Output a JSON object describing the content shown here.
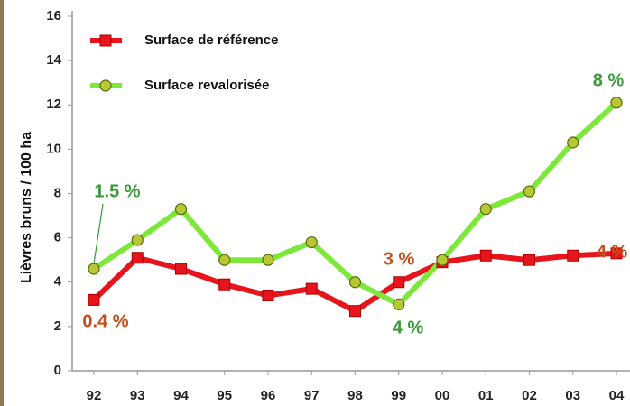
{
  "chart_data": {
    "type": "line",
    "y_label": "Lièvres bruns / 100 ha",
    "categories": [
      "92",
      "93",
      "94",
      "95",
      "96",
      "97",
      "98",
      "99",
      "00",
      "01",
      "02",
      "03",
      "04"
    ],
    "series": [
      {
        "name": "Surface de référence",
        "color": "#e8141c",
        "marker": "square",
        "values": [
          3.2,
          5.1,
          4.6,
          3.9,
          3.4,
          3.7,
          2.7,
          4.0,
          4.9,
          5.2,
          5.0,
          5.2,
          5.3
        ]
      },
      {
        "name": "Surface revalorisée",
        "color": "#7ee83a",
        "marker": "circle",
        "values": [
          4.6,
          5.9,
          7.3,
          5.0,
          5.0,
          5.8,
          4.0,
          3.0,
          5.0,
          7.3,
          8.1,
          10.3,
          12.1
        ]
      }
    ],
    "ylim": [
      0,
      16
    ],
    "yticks": [
      0,
      2,
      4,
      6,
      8,
      10,
      12,
      14,
      16
    ],
    "annotations": [
      {
        "text": "1.5 %",
        "color": "#3a9a3a"
      },
      {
        "text": "0.4 %",
        "color": "#c0521e"
      },
      {
        "text": "3 %",
        "color": "#c0521e"
      },
      {
        "text": "4 %",
        "color": "#3a9a3a"
      },
      {
        "text": "8 %",
        "color": "#3a9a3a"
      },
      {
        "text": "4 %",
        "color": "#c0521e"
      }
    ]
  }
}
